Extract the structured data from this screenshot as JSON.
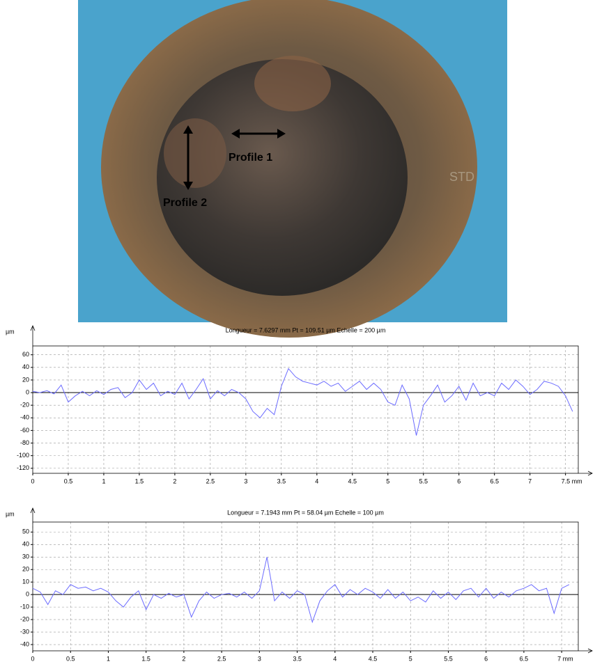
{
  "image": {
    "labels": [
      "Profile 1",
      "Profile 2"
    ]
  },
  "chart_data": [
    {
      "type": "line",
      "title": "Longueur = 7.6297 mm  Pt = 109.51 µm  Echelle = 200 µm",
      "y_label": "µm",
      "xlim": [
        0,
        7.68
      ],
      "ylim": [
        -128,
        74
      ],
      "xticks": [
        0,
        0.5,
        1,
        1.5,
        2,
        2.5,
        3,
        3.5,
        4,
        4.5,
        5,
        5.5,
        6,
        6.5,
        7,
        {
          "value": 7.5,
          "label": "7.5 mm"
        }
      ],
      "yticks": [
        60,
        40,
        20,
        0,
        -20,
        -40,
        -60,
        -80,
        -100,
        -120
      ],
      "grid": true,
      "x": [
        0,
        0.1,
        0.2,
        0.3,
        0.4,
        0.5,
        0.6,
        0.7,
        0.8,
        0.9,
        1,
        1.1,
        1.2,
        1.3,
        1.4,
        1.5,
        1.6,
        1.7,
        1.8,
        1.9,
        2,
        2.1,
        2.2,
        2.3,
        2.4,
        2.5,
        2.6,
        2.7,
        2.8,
        2.9,
        3,
        3.1,
        3.2,
        3.3,
        3.4,
        3.5,
        3.6,
        3.7,
        3.8,
        3.9,
        4,
        4.1,
        4.2,
        4.3,
        4.4,
        4.5,
        4.6,
        4.7,
        4.8,
        4.9,
        5,
        5.1,
        5.2,
        5.3,
        5.4,
        5.5,
        5.6,
        5.7,
        5.8,
        5.9,
        6,
        6.1,
        6.2,
        6.3,
        6.4,
        6.5,
        6.6,
        6.7,
        6.8,
        6.9,
        7,
        7.1,
        7.2,
        7.3,
        7.4,
        7.5,
        7.6
      ],
      "series": [
        {
          "color": "#6b6bff",
          "values": [
            2,
            0,
            3,
            -2,
            12,
            -15,
            -5,
            2,
            -5,
            3,
            -3,
            5,
            8,
            -8,
            0,
            20,
            5,
            15,
            -5,
            2,
            -3,
            15,
            -10,
            5,
            22,
            -10,
            3,
            -5,
            5,
            0,
            -10,
            -30,
            -40,
            -25,
            -35,
            10,
            38,
            25,
            18,
            15,
            12,
            18,
            10,
            15,
            2,
            10,
            18,
            5,
            15,
            5,
            -15,
            -20,
            12,
            -10,
            -68,
            -20,
            -5,
            12,
            -15,
            -5,
            10,
            -12,
            15,
            -5,
            0,
            -5,
            15,
            5,
            20,
            10,
            -3,
            5,
            18,
            15,
            10,
            -5,
            -30
          ]
        }
      ]
    },
    {
      "type": "line",
      "title": "Longueur = 7.1943 mm  Pt = 58.04 µm  Echelle = 100 µm",
      "y_label": "µm",
      "xlim": [
        0,
        7.22
      ],
      "ylim": [
        -45,
        58
      ],
      "xticks": [
        0,
        0.5,
        1,
        1.5,
        2,
        2.5,
        3,
        3.5,
        4,
        4.5,
        5,
        5.5,
        6,
        6.5,
        {
          "value": 7,
          "label": "7 mm"
        }
      ],
      "yticks": [
        50,
        40,
        30,
        20,
        10,
        0,
        -10,
        -20,
        -30,
        -40
      ],
      "grid": true,
      "x": [
        0,
        0.1,
        0.2,
        0.3,
        0.4,
        0.5,
        0.6,
        0.7,
        0.8,
        0.9,
        1,
        1.1,
        1.2,
        1.3,
        1.4,
        1.5,
        1.6,
        1.7,
        1.8,
        1.9,
        2,
        2.1,
        2.2,
        2.3,
        2.4,
        2.5,
        2.6,
        2.7,
        2.8,
        2.9,
        3,
        3.1,
        3.2,
        3.3,
        3.4,
        3.5,
        3.6,
        3.7,
        3.8,
        3.9,
        4,
        4.1,
        4.2,
        4.3,
        4.4,
        4.5,
        4.6,
        4.7,
        4.8,
        4.9,
        5,
        5.1,
        5.2,
        5.3,
        5.4,
        5.5,
        5.6,
        5.7,
        5.8,
        5.9,
        6,
        6.1,
        6.2,
        6.3,
        6.4,
        6.5,
        6.6,
        6.7,
        6.8,
        6.9,
        7,
        7.1
      ],
      "series": [
        {
          "color": "#6b6bff",
          "values": [
            5,
            2,
            -8,
            3,
            0,
            8,
            5,
            6,
            3,
            5,
            2,
            -5,
            -10,
            -2,
            3,
            -12,
            0,
            -3,
            1,
            -2,
            0,
            -18,
            -5,
            2,
            -3,
            0,
            1,
            -2,
            2,
            -3,
            3,
            30,
            -5,
            2,
            -3,
            3,
            0,
            -22,
            -5,
            3,
            8,
            -2,
            4,
            0,
            5,
            2,
            -3,
            4,
            -3,
            2,
            -5,
            -2,
            -6,
            3,
            -3,
            2,
            -4,
            3,
            5,
            -2,
            5,
            -3,
            2,
            -2,
            3,
            5,
            8,
            3,
            5,
            -15,
            5,
            8
          ]
        }
      ]
    }
  ]
}
